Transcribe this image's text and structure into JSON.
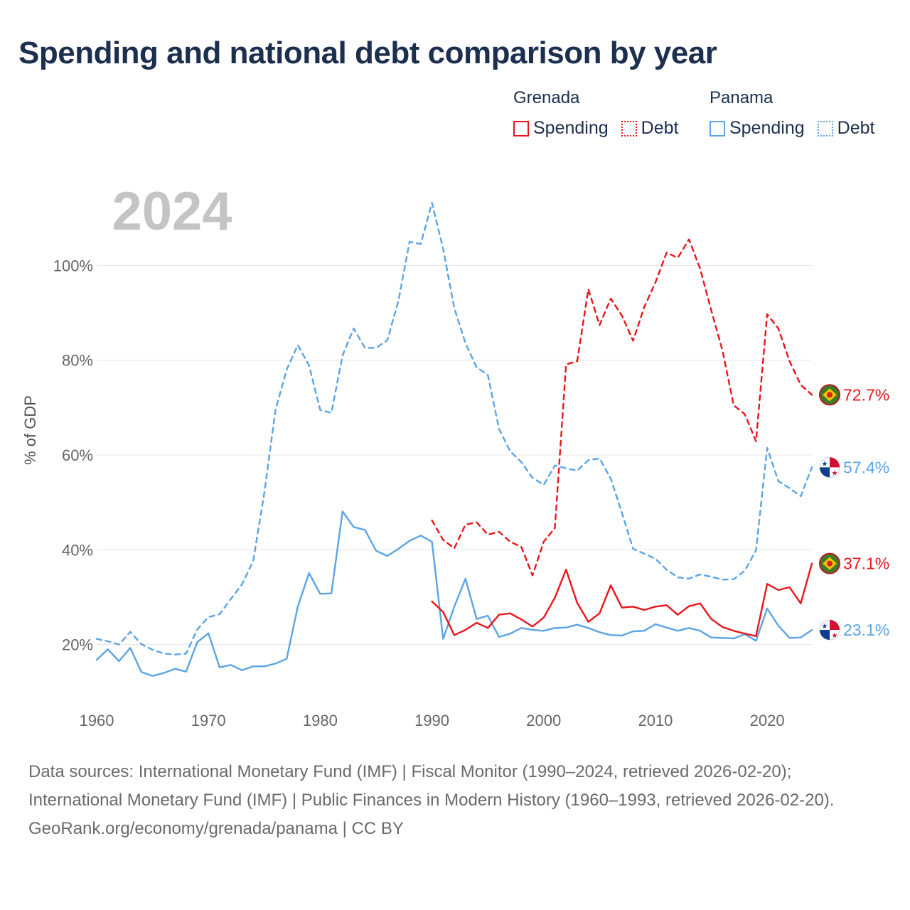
{
  "title": "Spending and national debt comparison by year",
  "legend": {
    "groups": [
      {
        "country": "Grenada",
        "color": "#e8151b",
        "spending": "Spending",
        "debt": "Debt"
      },
      {
        "country": "Panama",
        "color": "#5ba4e5",
        "spending": "Spending",
        "debt": "Debt"
      }
    ]
  },
  "chart_data": {
    "type": "line",
    "year_watermark": "2024",
    "ylabel": "% of GDP",
    "xlim": [
      1960,
      2024
    ],
    "ylim": [
      6,
      120
    ],
    "x_ticks": [
      1960,
      1970,
      1980,
      1990,
      2000,
      2010,
      2020
    ],
    "y_ticks": [
      {
        "value": 20,
        "label": "20%"
      },
      {
        "value": 40,
        "label": "40%"
      },
      {
        "value": 60,
        "label": "60%"
      },
      {
        "value": 80,
        "label": "80%"
      },
      {
        "value": 100,
        "label": "100%"
      }
    ],
    "series": [
      {
        "name": "Panama Debt",
        "country": "Panama",
        "kind": "debt",
        "color": "#5ba4e5",
        "dashed": true,
        "start_year": 1960,
        "end_label": "57.4%",
        "values": [
          21.2,
          20.7,
          20.0,
          22.7,
          20.1,
          18.9,
          18.1,
          17.9,
          18.1,
          23.2,
          25.8,
          26.4,
          29.6,
          32.7,
          37.6,
          52.0,
          69.5,
          78.0,
          83.2,
          78.9,
          69.5,
          68.9,
          81.0,
          86.7,
          82.6,
          82.6,
          84.2,
          92.5,
          105.0,
          104.5,
          113.2,
          103.5,
          91.0,
          83.6,
          78.5,
          76.9,
          65.5,
          60.8,
          58.5,
          55.2,
          53.7,
          57.8,
          57.2,
          56.7,
          58.9,
          59.3,
          55.0,
          47.8,
          40.2,
          39.2,
          38.1,
          35.8,
          34.2,
          33.9,
          34.8,
          34.3,
          33.7,
          33.8,
          35.6,
          39.9,
          61.5,
          54.5,
          53.0,
          51.3,
          57.4
        ]
      },
      {
        "name": "Panama Spending",
        "country": "Panama",
        "kind": "spending",
        "color": "#5ba4e5",
        "dashed": false,
        "start_year": 1960,
        "end_label": "23.1%",
        "values": [
          16.8,
          19.0,
          16.5,
          19.3,
          14.2,
          13.4,
          14.0,
          14.9,
          14.3,
          20.5,
          22.4,
          15.2,
          15.7,
          14.6,
          15.4,
          15.4,
          16.0,
          17.0,
          28.0,
          35.1,
          30.7,
          30.8,
          48.1,
          44.8,
          44.2,
          39.8,
          38.7,
          40.2,
          41.9,
          43.0,
          41.7,
          21.2,
          28.0,
          33.9,
          25.4,
          26.1,
          21.6,
          22.3,
          23.5,
          23.1,
          22.9,
          23.5,
          23.6,
          24.2,
          23.5,
          22.6,
          22.0,
          21.9,
          22.8,
          22.9,
          24.3,
          23.6,
          22.9,
          23.5,
          22.9,
          21.5,
          21.4,
          21.3,
          22.2,
          20.8,
          27.6,
          24.0,
          21.4,
          21.5,
          23.1
        ]
      },
      {
        "name": "Grenada Debt",
        "country": "Grenada",
        "kind": "debt",
        "color": "#e8151b",
        "dashed": true,
        "start_year": 1990,
        "end_label": "72.7%",
        "values": [
          46.2,
          42.1,
          40.3,
          45.3,
          45.8,
          43.2,
          43.8,
          41.7,
          40.6,
          34.6,
          41.7,
          44.6,
          79.1,
          79.8,
          95.0,
          87.4,
          93.0,
          89.4,
          84.1,
          91.2,
          96.4,
          102.7,
          101.6,
          105.5,
          99.3,
          90.5,
          82.0,
          70.5,
          68.6,
          62.9,
          89.7,
          86.7,
          79.8,
          74.8,
          72.7
        ]
      },
      {
        "name": "Grenada Spending",
        "country": "Grenada",
        "kind": "spending",
        "color": "#e8151b",
        "dashed": false,
        "start_year": 1990,
        "end_label": "37.1%",
        "values": [
          29.1,
          26.9,
          22.0,
          23.1,
          24.6,
          23.5,
          26.3,
          26.6,
          25.3,
          23.8,
          25.7,
          29.9,
          35.8,
          28.8,
          24.8,
          26.6,
          32.5,
          27.8,
          28.0,
          27.3,
          28.0,
          28.3,
          26.3,
          28.1,
          28.7,
          25.4,
          23.7,
          22.9,
          22.3,
          21.8,
          32.8,
          31.5,
          32.1,
          28.7,
          37.1
        ]
      }
    ]
  },
  "footer": {
    "sources": "Data sources: International Monetary Fund (IMF) | Fiscal Monitor (1990–2024, retrieved 2026-02-20); International Monetary Fund (IMF) | Public Finances in Modern History (1960–1993, retrieved 2026-02-20).",
    "credit": "GeoRank.org/economy/grenada/panama | CC BY"
  }
}
